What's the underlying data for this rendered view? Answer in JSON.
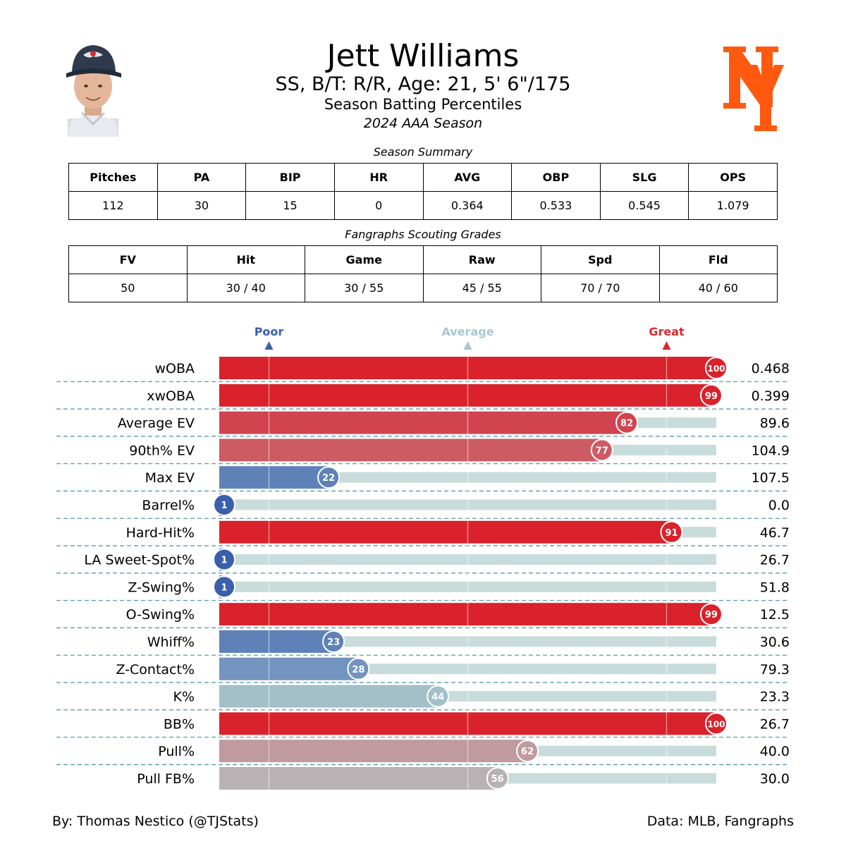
{
  "header": {
    "name": "Jett Williams",
    "info": "SS, B/T: R/R, Age: 21, 5' 6\"/175",
    "subtitle": "Season Batting Percentiles",
    "season": "2024 AAA Season"
  },
  "summary": {
    "title": "Season Summary",
    "columns": [
      "Pitches",
      "PA",
      "BIP",
      "HR",
      "AVG",
      "OBP",
      "SLG",
      "OPS"
    ],
    "values": [
      "112",
      "30",
      "15",
      "0",
      "0.364",
      "0.533",
      "0.545",
      "1.079"
    ]
  },
  "grades": {
    "title": "Fangraphs Scouting Grades",
    "columns": [
      "FV",
      "Hit",
      "Game",
      "Raw",
      "Spd",
      "Fld"
    ],
    "values": [
      "50",
      "30 / 40",
      "30 / 55",
      "45 / 55",
      "70 / 70",
      "40 / 60"
    ]
  },
  "chart_data": {
    "type": "bar",
    "orientation": "horizontal",
    "xlim": [
      0,
      100
    ],
    "markers": [
      {
        "label": "Poor",
        "value": 10,
        "color": "#3a5fad"
      },
      {
        "label": "Average",
        "value": 50,
        "color": "#a9c8d1"
      },
      {
        "label": "Great",
        "value": 90,
        "color": "#d62a2f"
      }
    ],
    "categories": [
      "wOBA",
      "xwOBA",
      "Average EV",
      "90th% EV",
      "Max EV",
      "Barrel%",
      "Hard-Hit%",
      "LA Sweet-Spot%",
      "Z-Swing%",
      "O-Swing%",
      "Whiff%",
      "Z-Contact%",
      "K%",
      "BB%",
      "Pull%",
      "Pull FB%"
    ],
    "percentiles": [
      100,
      99,
      82,
      77,
      22,
      1,
      91,
      1,
      1,
      99,
      23,
      28,
      44,
      100,
      62,
      56
    ],
    "stat_values": [
      "0.468",
      "0.399",
      "89.6",
      "104.9",
      "107.5",
      "0.0",
      "46.7",
      "26.7",
      "51.8",
      "12.5",
      "30.6",
      "79.3",
      "23.3",
      "26.7",
      "40.0",
      "30.0"
    ],
    "bar_colors": [
      "#d9222b",
      "#d9222b",
      "#d1434f",
      "#cd5b64",
      "#5e82b8",
      "#3a5fad",
      "#d9222b",
      "#3a5fad",
      "#3a5fad",
      "#d9222b",
      "#5e82b8",
      "#7294bf",
      "#a3bfc9",
      "#d9222b",
      "#bf9a9e",
      "#b8b2b4"
    ],
    "track_color": "#c8dcdc",
    "divider_color": "#4a8fa0"
  },
  "footer": {
    "credit": "By: Thomas Nestico (@TJStats)",
    "source": "Data: MLB, Fangraphs"
  },
  "colors": {
    "logo_orange": "#ff5910",
    "headshot_cap": "#2f3b4c"
  },
  "icons": {
    "headshot": "player-headshot",
    "logo": "team-logo"
  }
}
